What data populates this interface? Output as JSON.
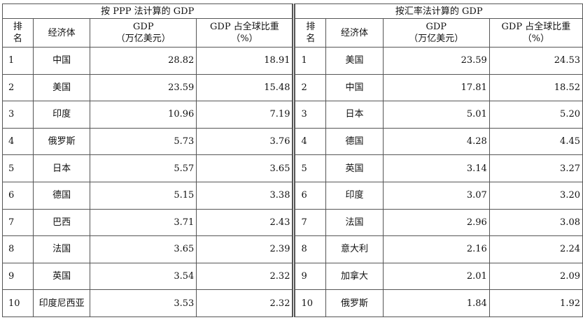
{
  "headers": {
    "rank": "排名",
    "rank_line1": "排",
    "rank_line2": "名",
    "economy": "经济体",
    "gdp_line1": "GDP",
    "gdp_line2": "（万亿美元）",
    "share_line1": "GDP 占全球比重",
    "share_line2": "（%）"
  },
  "ppp": {
    "title": "按 PPP 法计算的 GDP",
    "rows": [
      {
        "rank": "1",
        "economy": "中国",
        "gdp": "28.82",
        "share": "18.91"
      },
      {
        "rank": "2",
        "economy": "美国",
        "gdp": "23.59",
        "share": "15.48"
      },
      {
        "rank": "3",
        "economy": "印度",
        "gdp": "10.96",
        "share": "7.19"
      },
      {
        "rank": "4",
        "economy": "俄罗斯",
        "gdp": "5.73",
        "share": "3.76"
      },
      {
        "rank": "5",
        "economy": "日本",
        "gdp": "5.57",
        "share": "3.65"
      },
      {
        "rank": "6",
        "economy": "德国",
        "gdp": "5.15",
        "share": "3.38"
      },
      {
        "rank": "7",
        "economy": "巴西",
        "gdp": "3.71",
        "share": "2.43"
      },
      {
        "rank": "8",
        "economy": "法国",
        "gdp": "3.65",
        "share": "2.39"
      },
      {
        "rank": "9",
        "economy": "英国",
        "gdp": "3.54",
        "share": "2.32"
      },
      {
        "rank": "10",
        "economy": "印度尼西亚",
        "gdp": "3.53",
        "share": "2.32"
      }
    ]
  },
  "fx": {
    "title": "按汇率法计算的 GDP",
    "rows": [
      {
        "rank": "1",
        "economy": "美国",
        "gdp": "23.59",
        "share": "24.53"
      },
      {
        "rank": "2",
        "economy": "中国",
        "gdp": "17.81",
        "share": "18.52"
      },
      {
        "rank": "3",
        "economy": "日本",
        "gdp": "5.01",
        "share": "5.20"
      },
      {
        "rank": "4",
        "economy": "德国",
        "gdp": "4.28",
        "share": "4.45"
      },
      {
        "rank": "5",
        "economy": "英国",
        "gdp": "3.14",
        "share": "3.27"
      },
      {
        "rank": "6",
        "economy": "印度",
        "gdp": "3.07",
        "share": "3.20"
      },
      {
        "rank": "7",
        "economy": "法国",
        "gdp": "2.96",
        "share": "3.08"
      },
      {
        "rank": "8",
        "economy": "意大利",
        "gdp": "2.16",
        "share": "2.24"
      },
      {
        "rank": "9",
        "economy": "加拿大",
        "gdp": "2.01",
        "share": "2.09"
      },
      {
        "rank": "10",
        "economy": "俄罗斯",
        "gdp": "1.84",
        "share": "1.92"
      }
    ]
  }
}
